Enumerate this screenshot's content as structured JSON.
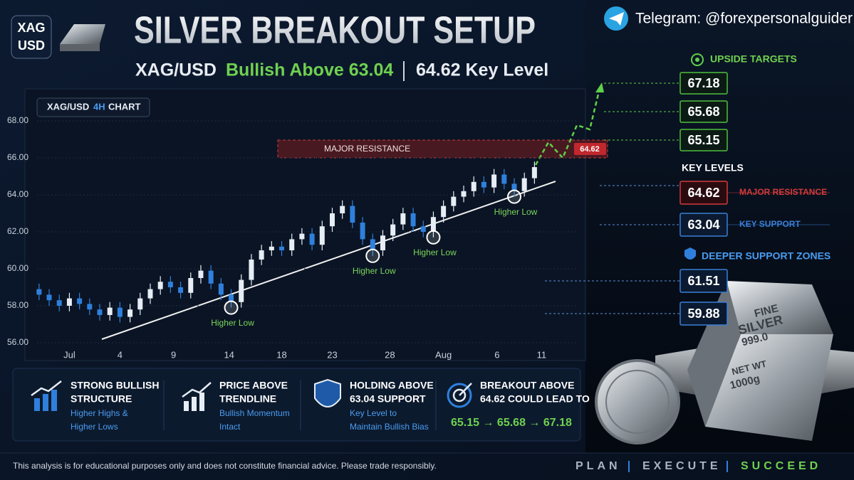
{
  "header": {
    "badge": [
      "XAG",
      "USD"
    ],
    "title": "SILVER BREAKOUT SETUP",
    "subtitle_pair": "XAG/USD",
    "subtitle_bias": "Bullish Above 63.04",
    "subtitle_level": "64.62 Key Level"
  },
  "telegram": "Telegram: @forexpersonalguider",
  "chart_data": {
    "type": "candlestick",
    "title": "XAG/USD",
    "timeframe": "4H",
    "title_suffix": "CHART",
    "open": [
      58.9,
      58.6,
      58.3,
      58.0,
      58.4,
      58.1,
      57.8,
      57.5,
      57.9,
      57.4,
      57.8,
      58.4,
      58.9,
      59.3,
      59.0,
      58.7,
      59.5,
      59.9,
      59.2,
      58.6,
      58.2,
      59.4,
      60.5,
      61.0,
      61.2,
      61.0,
      61.6,
      61.9,
      61.3,
      62.3,
      63.0,
      63.4,
      62.5,
      61.6,
      61.0,
      61.8,
      62.4,
      63.0,
      62.3,
      62.0,
      62.8,
      63.4,
      63.9,
      64.2,
      64.7,
      64.4,
      65.1,
      64.6,
      64.2,
      64.9
    ],
    "high": [
      59.2,
      58.9,
      58.6,
      58.7,
      58.7,
      58.4,
      58.1,
      58.2,
      58.2,
      58.1,
      58.7,
      59.2,
      59.6,
      59.6,
      59.3,
      59.8,
      60.2,
      60.2,
      59.5,
      58.9,
      59.7,
      60.8,
      61.3,
      61.5,
      61.5,
      61.9,
      62.2,
      62.2,
      62.6,
      63.3,
      63.7,
      63.7,
      62.8,
      61.9,
      62.1,
      62.7,
      63.3,
      63.3,
      62.6,
      63.1,
      63.7,
      64.2,
      64.5,
      65.0,
      65.0,
      65.4,
      65.4,
      64.9,
      65.2,
      65.8
    ],
    "low": [
      58.3,
      58.0,
      57.7,
      57.7,
      57.8,
      57.5,
      57.2,
      57.2,
      57.1,
      57.1,
      57.5,
      58.1,
      58.6,
      58.7,
      58.4,
      58.4,
      59.2,
      58.9,
      58.3,
      57.9,
      57.9,
      59.1,
      60.2,
      60.7,
      60.7,
      60.7,
      61.3,
      61.0,
      61.0,
      62.0,
      62.7,
      62.2,
      61.3,
      60.7,
      60.7,
      61.5,
      62.1,
      62.0,
      61.7,
      61.7,
      62.5,
      63.1,
      63.6,
      63.9,
      64.1,
      64.1,
      64.3,
      63.9,
      63.9,
      64.6
    ],
    "close": [
      58.6,
      58.3,
      58.0,
      58.4,
      58.1,
      57.8,
      57.5,
      57.9,
      57.4,
      57.8,
      58.4,
      58.9,
      59.3,
      59.0,
      58.7,
      59.5,
      59.9,
      59.2,
      58.6,
      58.2,
      59.4,
      60.5,
      61.0,
      61.2,
      61.0,
      61.6,
      61.9,
      61.3,
      62.3,
      63.0,
      63.4,
      62.5,
      61.6,
      61.0,
      61.8,
      62.4,
      63.0,
      62.3,
      62.0,
      62.8,
      63.4,
      63.9,
      64.2,
      64.7,
      64.4,
      65.1,
      64.6,
      64.2,
      64.9,
      65.5
    ],
    "up_color": "#e6edf5",
    "down_color": "#2f80dc",
    "ylim": [
      56,
      68
    ],
    "yticks": [
      {
        "value": 56,
        "label": "56.00"
      },
      {
        "value": 58,
        "label": "58.00"
      },
      {
        "value": 60,
        "label": "60.00"
      },
      {
        "value": 62,
        "label": "62.00"
      },
      {
        "value": 64,
        "label": "64.00"
      },
      {
        "value": 66,
        "label": "66.00"
      },
      {
        "value": 68,
        "label": "68.00"
      }
    ],
    "xlim": [
      -0.2,
      53.2
    ],
    "xticks": [
      {
        "value": 3,
        "label": "Jul"
      },
      {
        "value": 8,
        "label": "4"
      },
      {
        "value": 13.3,
        "label": "9"
      },
      {
        "value": 18.8,
        "label": "14"
      },
      {
        "value": 24,
        "label": "18"
      },
      {
        "value": 29,
        "label": "23"
      },
      {
        "value": 34.7,
        "label": "28"
      },
      {
        "value": 40,
        "label": "Aug"
      },
      {
        "value": 45.3,
        "label": "6"
      },
      {
        "value": 49.7,
        "label": "11"
      }
    ],
    "grid": true,
    "annotations": [
      {
        "label": "Higher Low",
        "x": 19,
        "y": 57.9
      },
      {
        "label": "Higher Low",
        "x": 33,
        "y": 60.7
      },
      {
        "label": "Higher Low",
        "x": 39,
        "y": 61.7
      },
      {
        "label": "Higher Low",
        "x": 47,
        "y": 63.9
      }
    ],
    "resistance": {
      "label": "MAJOR RESISTANCE",
      "value": 64.62
    }
  },
  "targets": {
    "title": "UPSIDE TARGETS",
    "levels": [
      "67.18",
      "65.68",
      "65.15"
    ]
  },
  "key_levels": {
    "title": "KEY LEVELS",
    "items": [
      {
        "value": "64.62",
        "label": "MAJOR RESISTANCE"
      },
      {
        "value": "63.04",
        "label": "KEY SUPPORT"
      }
    ]
  },
  "support_zones": {
    "title": "DEEPER SUPPORT ZONES",
    "levels": [
      "61.51",
      "59.88"
    ]
  },
  "cards": [
    {
      "title": [
        "STRONG BULLISH",
        "STRUCTURE"
      ],
      "text": [
        "Higher Highs &",
        "Higher Lows"
      ]
    },
    {
      "title": [
        "PRICE ABOVE",
        "TRENDLINE"
      ],
      "text": [
        "Bullish Momentum",
        "Intact"
      ]
    },
    {
      "title": [
        "HOLDING ABOVE",
        "63.04 SUPPORT"
      ],
      "text": [
        "Key Level to",
        "Maintain Bullish Bias"
      ]
    },
    {
      "title": [
        "BREAKOUT ABOVE",
        "64.62 COULD LEAD TO"
      ],
      "text": [
        "65.15 → 65.68 → 67.18"
      ]
    }
  ],
  "bar_engraving": [
    "FINE",
    "SILVER",
    "999.0",
    "NET WT",
    "1000g"
  ],
  "disclaimer": "This analysis is for educational purposes only and does not constitute financial advice. Please trade responsibly.",
  "tagline": [
    "PLAN",
    "EXECUTE",
    "SUCCEED"
  ]
}
